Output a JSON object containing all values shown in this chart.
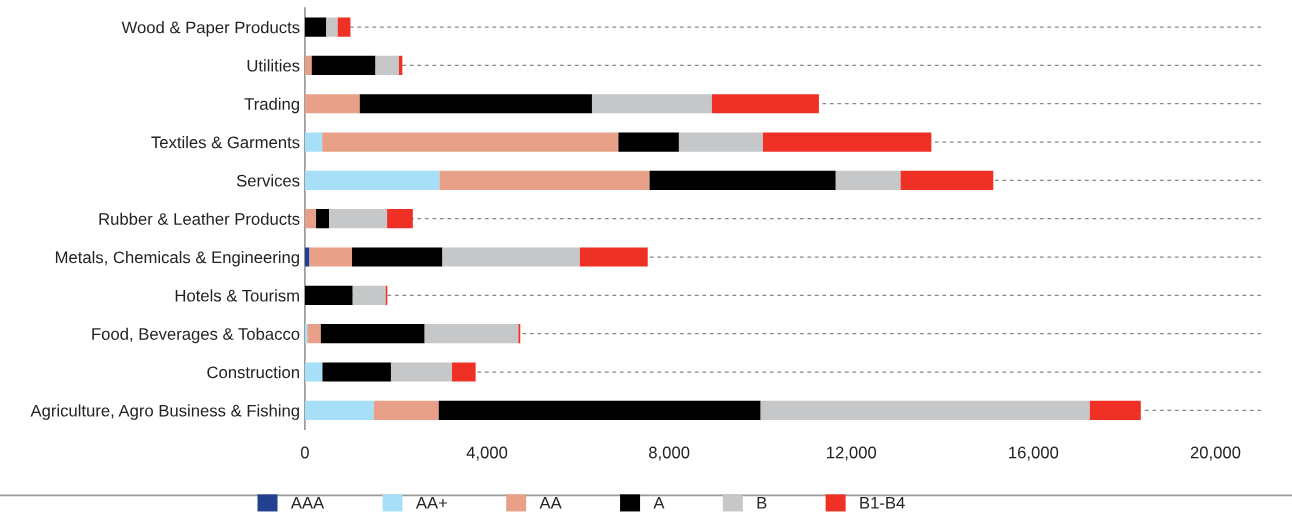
{
  "chart_data": {
    "type": "bar",
    "orientation": "horizontal",
    "stacked": true,
    "categories": [
      "Wood & Paper Products",
      "Utilities",
      "Trading",
      "Textiles & Garments",
      "Services",
      "Rubber & Leather Products",
      "Metals, Chemicals & Engineering",
      "Hotels & Tourism",
      "Food, Beverages & Tobacco",
      "Construction",
      "Agriculture, Agro Business & Fishing"
    ],
    "series": [
      {
        "name": "AAA",
        "color": "#22408f",
        "values": [
          null,
          null,
          null,
          null,
          null,
          null,
          100,
          null,
          null,
          null,
          null
        ]
      },
      {
        "name": "AA+",
        "color": "#a8dff8",
        "values": [
          null,
          null,
          null,
          380,
          2955,
          null,
          null,
          null,
          55,
          385,
          1515
        ]
      },
      {
        "name": "AA",
        "color": "#e8a088",
        "values": [
          null,
          150,
          1205,
          6505,
          4615,
          245,
          935,
          null,
          295,
          null,
          1425
        ]
      },
      {
        "name": "A",
        "color": "#000000",
        "values": [
          470,
          1400,
          5100,
          1330,
          4090,
          285,
          1985,
          1050,
          2280,
          1505,
          7070
        ]
      },
      {
        "name": "B",
        "color": "#c6c7c8",
        "values": [
          250,
          515,
          2635,
          1845,
          1425,
          1275,
          3020,
          725,
          2060,
          1340,
          7230
        ]
      },
      {
        "name": "B1-B4",
        "color": "#ee3124",
        "values": [
          280,
          75,
          2350,
          3700,
          2035,
          565,
          1490,
          35,
          40,
          520,
          1120
        ]
      }
    ],
    "xlim": [
      0,
      21000
    ],
    "xticks": [
      {
        "value": 0,
        "label": "0"
      },
      {
        "value": 4000,
        "label": "4,000"
      },
      {
        "value": 8000,
        "label": "8,000"
      },
      {
        "value": 12000,
        "label": "12,000"
      },
      {
        "value": 16000,
        "label": "16,000"
      },
      {
        "value": 20000,
        "label": "20,000"
      }
    ],
    "grid": "y",
    "legend": "bottom"
  }
}
